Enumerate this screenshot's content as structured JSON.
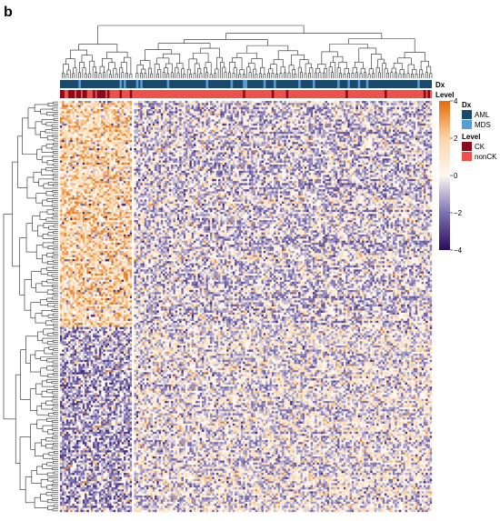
{
  "panel_label": "b",
  "chart_data": {
    "type": "heatmap",
    "title": "",
    "xlabel": "",
    "ylabel": "",
    "grid": false,
    "dendrograms": [
      "top",
      "left"
    ],
    "annotation_tracks": [
      {
        "name": "Dx",
        "categories": [
          {
            "label": "AML",
            "color": "#1a4a6b"
          },
          {
            "label": "MDS",
            "color": "#5b9bd5"
          }
        ]
      },
      {
        "name": "Level",
        "categories": [
          {
            "label": "CK",
            "color": "#8b0a1a"
          },
          {
            "label": "nonCK",
            "color": "#f0504a"
          }
        ]
      }
    ],
    "color_scale": {
      "range": [
        -4,
        4
      ],
      "ticks": [
        4,
        2,
        0,
        -2,
        -4
      ],
      "tick_labels": [
        "4",
        "2",
        "0",
        "−2",
        "−4"
      ],
      "stops": [
        {
          "value": 4,
          "color": "#e36c0a"
        },
        {
          "value": 2,
          "color": "#fbd5a6"
        },
        {
          "value": 0,
          "color": "#fdf7f2"
        },
        {
          "value": -2,
          "color": "#7c72b3"
        },
        {
          "value": -4,
          "color": "#2b0b5a"
        }
      ]
    },
    "legend_placement": "right",
    "approx_columns": 180,
    "approx_rows": 200,
    "column_cluster_split": "two clusters; left cluster mostly CK, right cluster mostly nonCK",
    "row_cluster_split": "upper rows higher expression in left cluster; lower rows mostly low expression"
  }
}
